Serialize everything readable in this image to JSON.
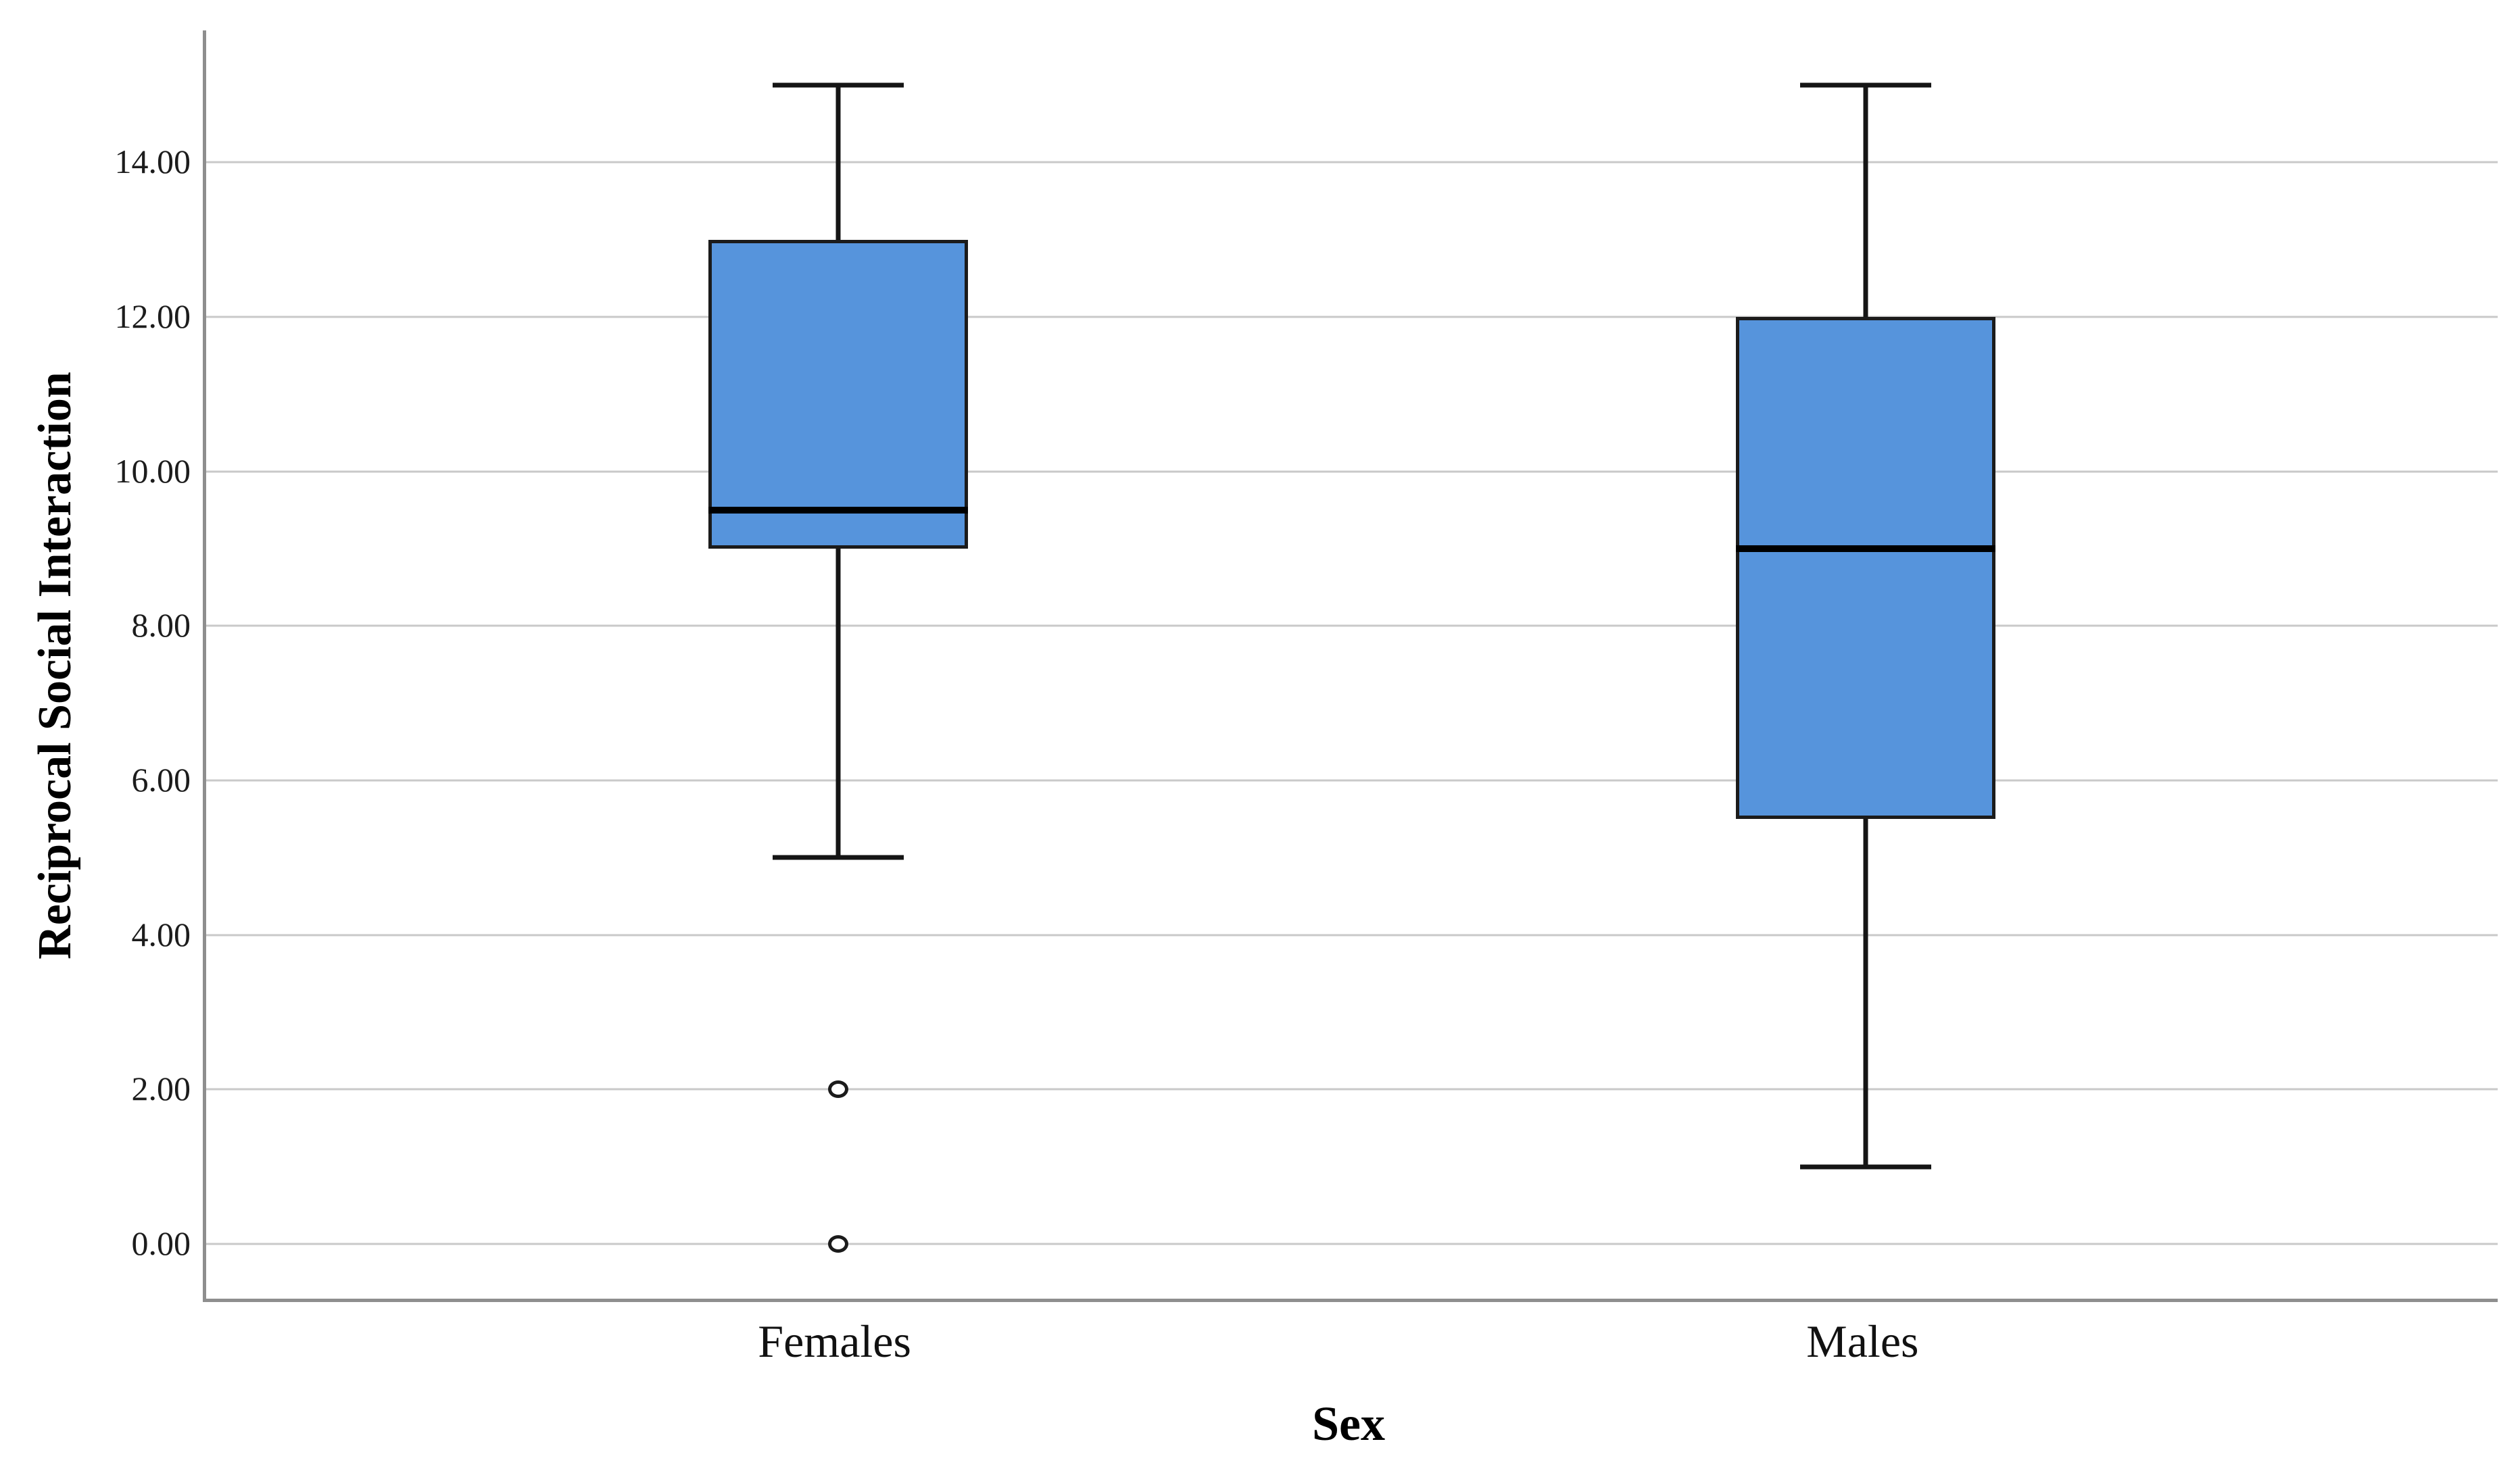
{
  "chart_data": {
    "type": "boxplot",
    "title": "",
    "xlabel": "Sex",
    "ylabel": "Reciprocal Social Interaction",
    "categories": [
      "Females",
      "Males"
    ],
    "y_ticks": [
      {
        "label": "14.00",
        "value": 14
      },
      {
        "label": "12.00",
        "value": 12
      },
      {
        "label": "10.00",
        "value": 10
      },
      {
        "label": "8.00",
        "value": 8
      },
      {
        "label": "6.00",
        "value": 6
      },
      {
        "label": "4.00",
        "value": 4
      },
      {
        "label": "2.00",
        "value": 2
      },
      {
        "label": "0.00",
        "value": 0
      }
    ],
    "ylim": [
      -0.71,
      15.71
    ],
    "grid": "horizontal",
    "legend": "none",
    "series": [
      {
        "category": "Females",
        "whisker_low": 5.0,
        "q1": 9.0,
        "median": 9.5,
        "q3": 13.0,
        "whisker_high": 15.0,
        "outliers": [
          2.0,
          0.0
        ]
      },
      {
        "category": "Males",
        "whisker_low": 1.0,
        "q1": 5.5,
        "median": 9.0,
        "q3": 12.0,
        "whisker_high": 15.0,
        "outliers": []
      }
    ],
    "colors": {
      "box_fill": "#5694dc",
      "box_border": "#1b1b1b",
      "median_line": "#000000",
      "whisker": "#151515",
      "gridline": "#c9c9c9",
      "axis_line": "#8e8e8e",
      "text": "#1c1c1c"
    }
  }
}
